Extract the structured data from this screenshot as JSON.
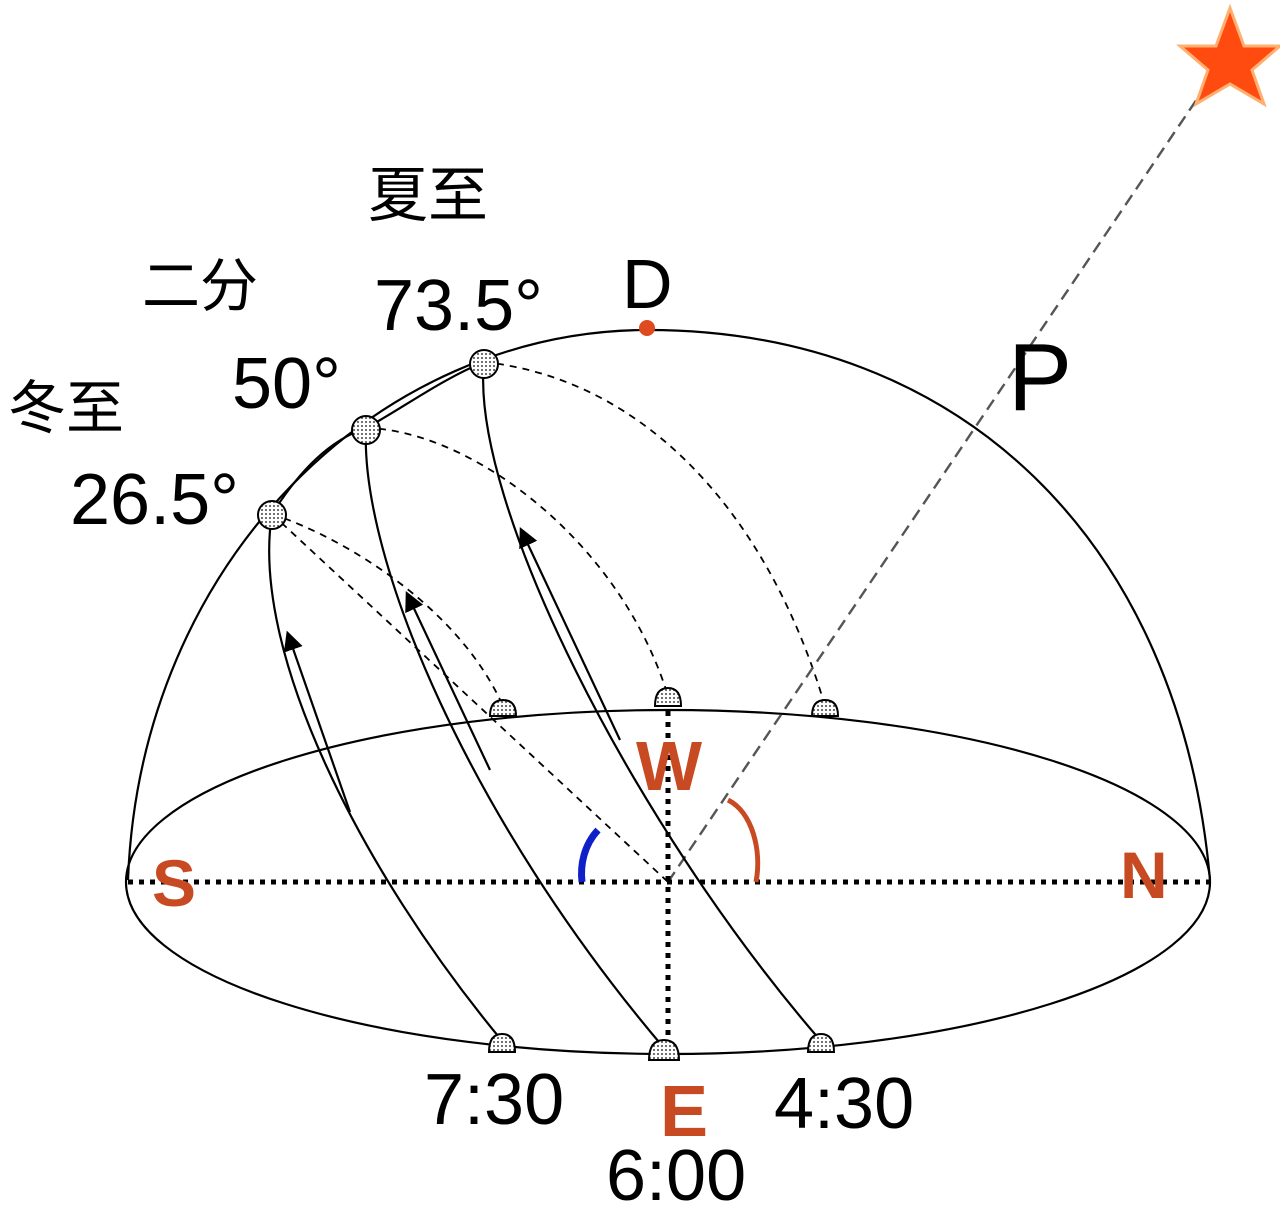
{
  "labels": {
    "summer_solstice": "夏至",
    "equinox": "二分",
    "winter_solstice": "冬至",
    "summer_angle": "73.5°",
    "equinox_angle": "50°",
    "winter_angle": "26.5°",
    "zenith": "D",
    "pole": "P",
    "south": "S",
    "north": "N",
    "west": "W",
    "east": "E",
    "time_winter": "7:30",
    "time_equinox": "6:00",
    "time_summer": "4:30"
  },
  "colors": {
    "direction_letters": "#c84a22",
    "zenith_dot": "#e04a20",
    "star": "#ff4a10",
    "blue_arc": "#1020c8",
    "red_arc": "#c84a22",
    "lines": "#000000"
  },
  "icons": {
    "pole_star": "star-icon"
  }
}
